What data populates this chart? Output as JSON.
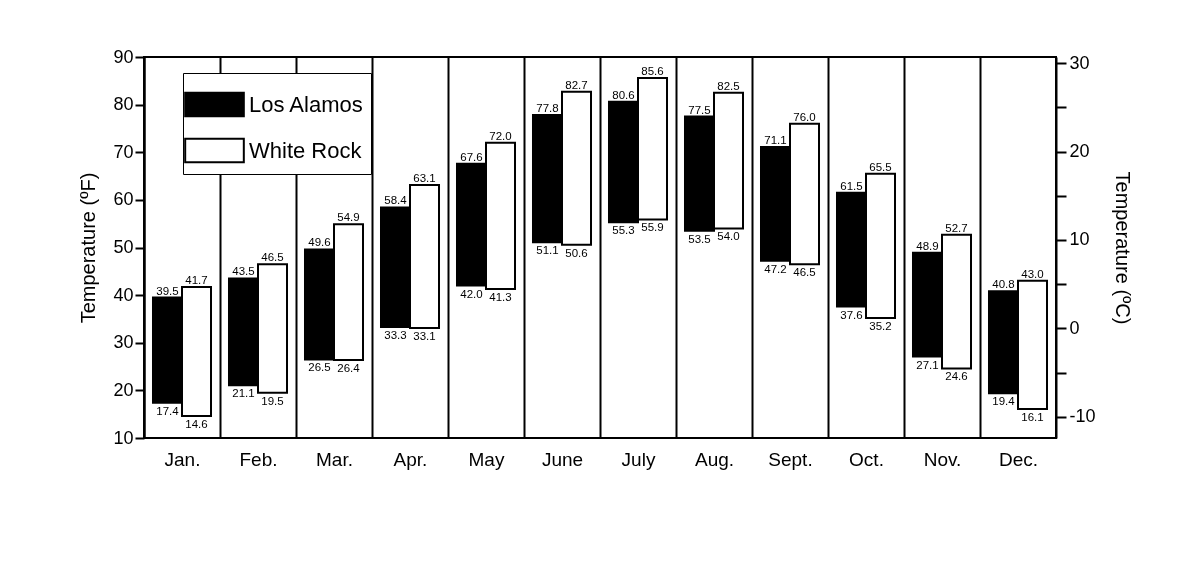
{
  "chart_data": {
    "type": "bar",
    "categories": [
      "Jan.",
      "Feb.",
      "Mar.",
      "Apr.",
      "May",
      "June",
      "July",
      "Aug.",
      "Sept.",
      "Oct.",
      "Nov.",
      "Dec."
    ],
    "series": [
      {
        "name": "Los Alamos",
        "color": "#000000",
        "base": [
          17.4,
          21.1,
          26.5,
          33.3,
          42.0,
          51.1,
          55.3,
          53.5,
          47.2,
          37.6,
          27.1,
          19.4
        ],
        "values": [
          22.1,
          22.4,
          23.1,
          25.1,
          25.6,
          26.7,
          25.3,
          24.0,
          23.9,
          23.9,
          21.8,
          21.4
        ],
        "value_labels": [
          "39.5",
          "43.5",
          "49.6",
          "58.4",
          "67.6",
          "77.8",
          "80.6",
          "77.5",
          "71.1",
          "61.5",
          "48.9",
          "40.8"
        ]
      },
      {
        "name": "White Rock",
        "color": "#ffffff",
        "base": [
          14.6,
          19.5,
          26.4,
          33.1,
          41.3,
          50.6,
          55.9,
          54.0,
          46.5,
          35.2,
          24.6,
          16.1
        ],
        "values": [
          27.1,
          27.0,
          28.5,
          30.0,
          30.7,
          32.1,
          29.7,
          28.5,
          29.5,
          30.3,
          28.1,
          26.9
        ],
        "value_labels": [
          "41.7",
          "46.5",
          "54.9",
          "63.1",
          "72.0",
          "82.7",
          "85.6",
          "82.5",
          "76.0",
          "65.5",
          "52.7",
          "43.0"
        ]
      }
    ],
    "ylabel": "Temperature (ºF)",
    "y2label": "Temperature (ºC)",
    "ylim": [
      10,
      90
    ],
    "yticks": [
      10,
      20,
      30,
      40,
      50,
      60,
      70,
      80,
      90
    ],
    "y2lim": [
      -12.4,
      30.7
    ],
    "y2ticks": [
      -10,
      {
        "value": -5,
        "label": null
      },
      0,
      {
        "value": 5,
        "label": null
      },
      10,
      {
        "value": 15,
        "label": null
      },
      20,
      {
        "value": 25,
        "label": null
      },
      30
    ],
    "grid": "x",
    "legend": "top left",
    "annotations": [
      {
        "text": "17.4",
        "x": "Jan.",
        "y": 17.4
      },
      {
        "text": "14.6",
        "x": "Jan.",
        "y": 14.6
      },
      {
        "text": "21.1",
        "x": "Feb.",
        "y": 21.1
      },
      {
        "text": "19.5",
        "x": "Feb.",
        "y": 19.5
      },
      {
        "text": "26.5",
        "x": "Mar.",
        "y": 26.5
      },
      {
        "text": "26.4",
        "x": "Mar.",
        "y": 26.4
      },
      {
        "text": "33.3",
        "x": "Apr.",
        "y": 33.3
      },
      {
        "text": "33.1",
        "x": "Apr.",
        "y": 33.1
      },
      {
        "text": "42.0",
        "x": "May",
        "y": 42.0
      },
      {
        "text": "41.3",
        "x": "May",
        "y": 41.3
      },
      {
        "text": "51.1",
        "x": "June",
        "y": 51.1
      },
      {
        "text": "50.6",
        "x": "June",
        "y": 50.6
      },
      {
        "text": "55.3",
        "x": "July",
        "y": 55.3
      },
      {
        "text": "55.9",
        "x": "July",
        "y": 55.9
      },
      {
        "text": "53.5",
        "x": "Aug.",
        "y": 53.5
      },
      {
        "text": "54.0",
        "x": "Aug.",
        "y": 54.0
      },
      {
        "text": "47.2",
        "x": "Sept.",
        "y": 47.2
      },
      {
        "text": "46.5",
        "x": "Sept.",
        "y": 46.5
      },
      {
        "text": "37.6",
        "x": "Oct.",
        "y": 37.6
      },
      {
        "text": "35.2",
        "x": "Oct.",
        "y": 35.2
      },
      {
        "text": "27.1",
        "x": "Nov.",
        "y": 27.1
      },
      {
        "text": "24.6",
        "x": "Nov.",
        "y": 24.6
      },
      {
        "text": "19.4",
        "x": "Dec.",
        "y": 19.4
      },
      {
        "text": "16.1",
        "x": "Dec.",
        "y": 16.1
      }
    ]
  }
}
